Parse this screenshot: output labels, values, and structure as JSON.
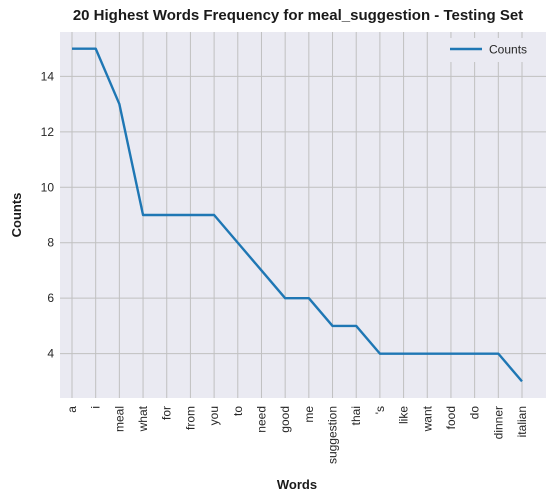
{
  "chart_data": {
    "type": "line",
    "title": "20 Highest Words Frequency for meal_suggestion - Testing Set",
    "xlabel": "Words",
    "ylabel": "Counts",
    "categories": [
      "a",
      "i",
      "meal",
      "what",
      "for",
      "from",
      "you",
      "to",
      "need",
      "good",
      "me",
      "suggestion",
      "thai",
      "'s",
      "like",
      "want",
      "food",
      "do",
      "dinner",
      "italian"
    ],
    "series": [
      {
        "name": "Counts",
        "values": [
          15,
          15,
          13,
          9,
          9,
          9,
          9,
          8,
          7,
          6,
          6,
          5,
          5,
          4,
          4,
          4,
          4,
          4,
          4,
          3
        ]
      }
    ],
    "ylim": [
      2.4,
      15.6
    ],
    "yticks": [
      4,
      6,
      8,
      10,
      12,
      14
    ],
    "grid": true,
    "legend_position": "top-right",
    "colors": {
      "series": "#1f77b4",
      "background": "#eaeaf2",
      "grid": "#c0c0c0"
    }
  }
}
